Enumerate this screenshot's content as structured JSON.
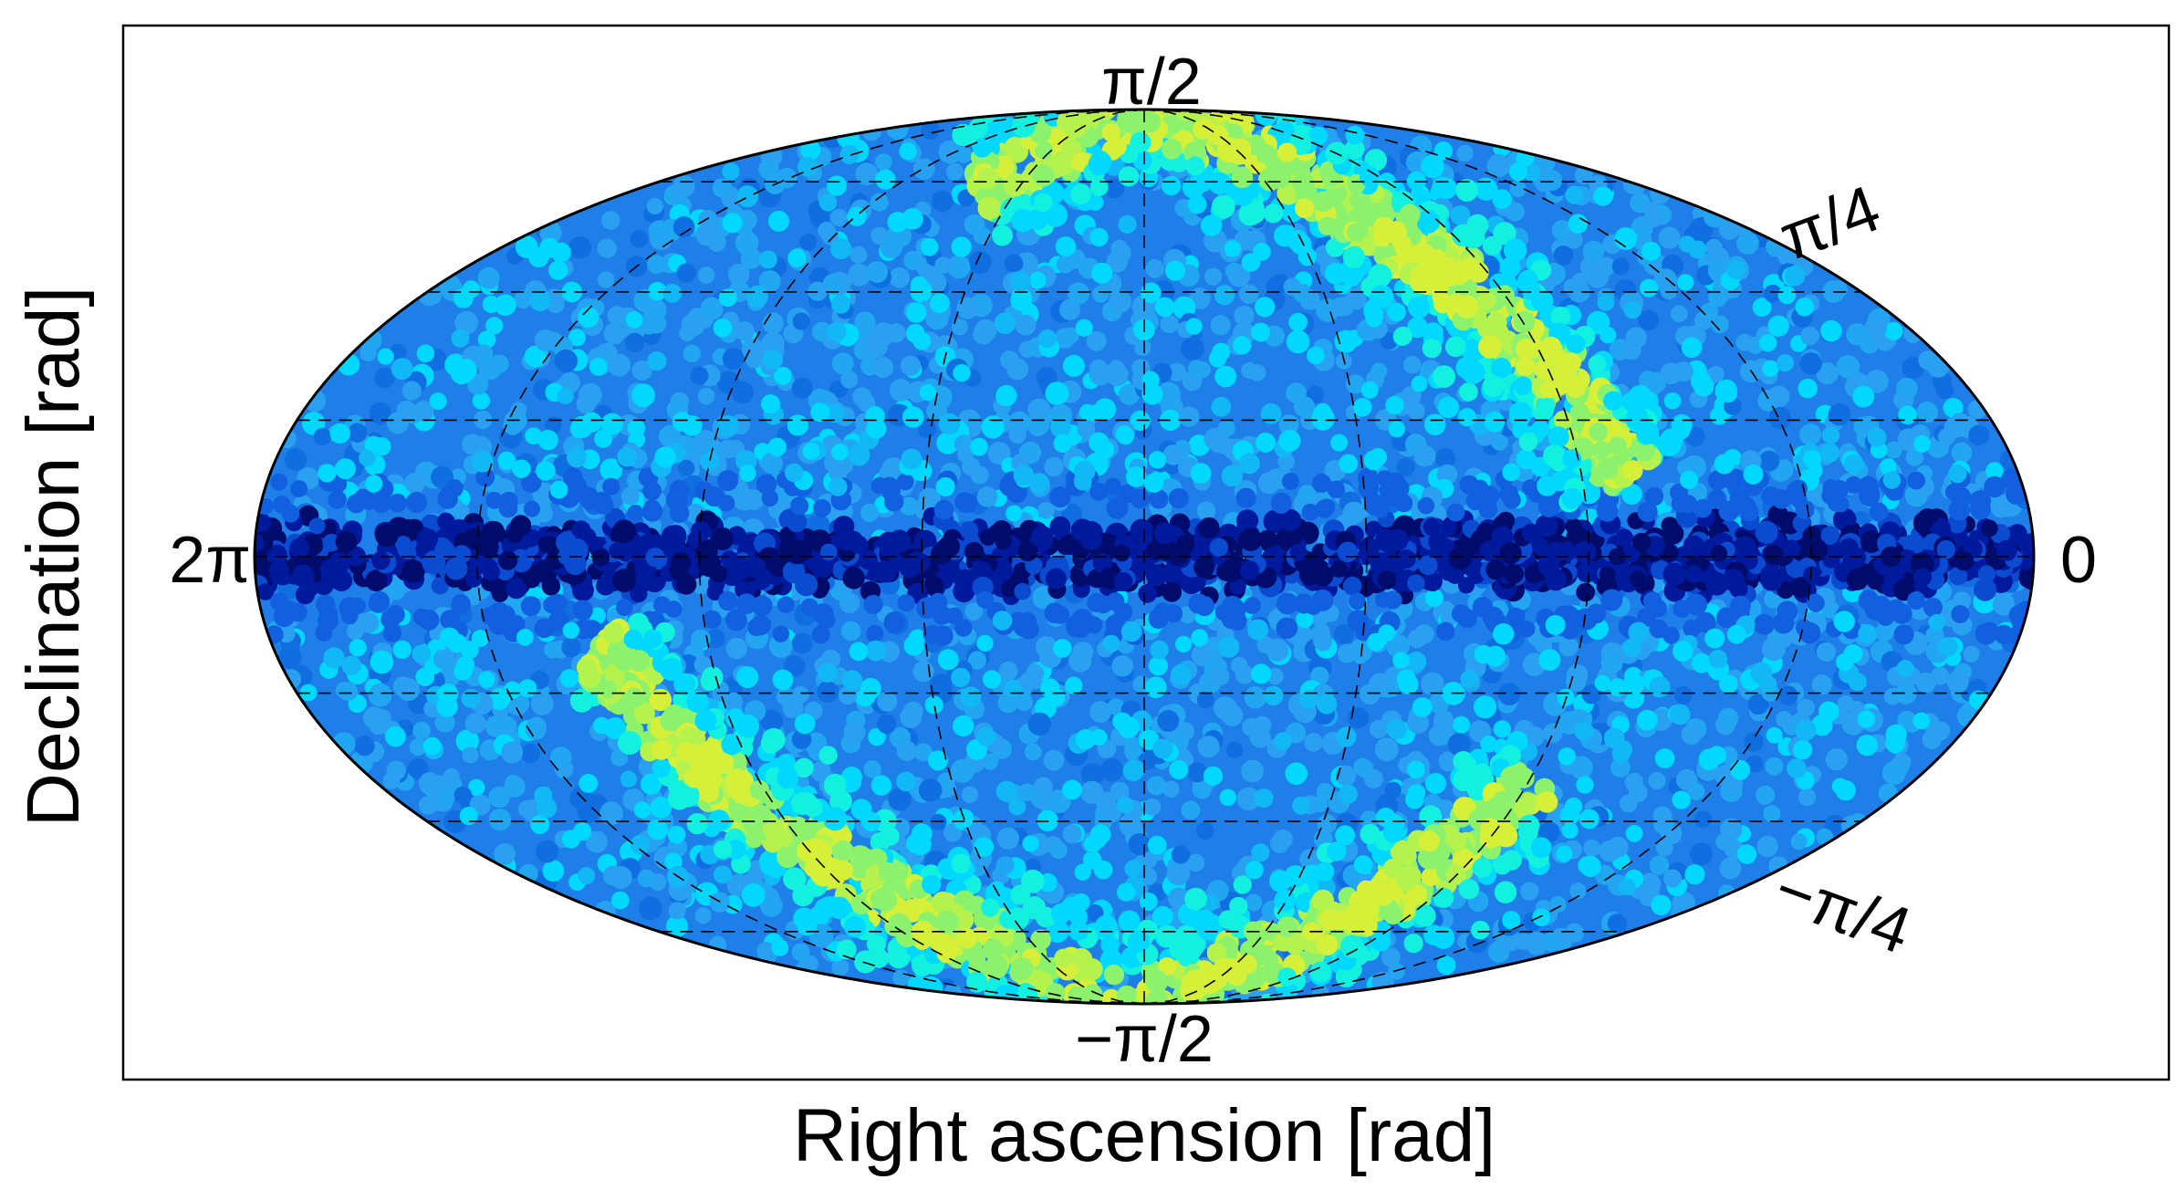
{
  "chart_data": {
    "type": "scatter",
    "projection": "mollweide",
    "title": "",
    "xlabel": "Right ascension [rad]",
    "ylabel": "Declination [rad]",
    "ra_range": [
      "0",
      "2π"
    ],
    "dec_range": [
      "−π/2",
      "π/2"
    ],
    "tick_labels": {
      "top": "π/2",
      "bottom": "−π/2",
      "left": "2π",
      "right": "0",
      "upper_right": "π/4",
      "lower_right": "−π/4"
    },
    "graticule": {
      "meridians_deg": [
        -135,
        -90,
        -45,
        0,
        45,
        90,
        135
      ],
      "parallels_deg": [
        -67.5,
        -45,
        -22.5,
        0,
        22.5,
        45,
        67.5
      ],
      "style": "dashed"
    },
    "colormap": "jet",
    "colors": {
      "background_disk": "#1e7fe8",
      "background_alt": "#2aa0f0",
      "equator_band": "#001a9e",
      "equator_band_dark": "#000c6b",
      "scatter_light": "#00d8ff",
      "scatter_cyan": "#14f0e0",
      "arc_green": "#8cf26c",
      "arc_yellow": "#d6f03a",
      "outline": "#000000"
    },
    "features": [
      {
        "name": "galactic-band-north",
        "description_points_deg": [
          [
            -10,
            88
          ],
          [
            30,
            80
          ],
          [
            65,
            66
          ],
          [
            85,
            45
          ],
          [
            95,
            25
          ],
          [
            100,
            10
          ]
        ],
        "peak_value": "high"
      },
      {
        "name": "galactic-band-south",
        "description_points_deg": [
          [
            -108,
            -10
          ],
          [
            -102,
            -30
          ],
          [
            -85,
            -55
          ],
          [
            -40,
            -80
          ],
          [
            0,
            -89
          ],
          [
            40,
            -80
          ],
          [
            75,
            -62
          ],
          [
            90,
            -38
          ]
        ],
        "peak_value": "high"
      },
      {
        "name": "equatorial-low-band",
        "lat_range_deg": [
          -5,
          5
        ],
        "peak_value": "low"
      }
    ]
  }
}
